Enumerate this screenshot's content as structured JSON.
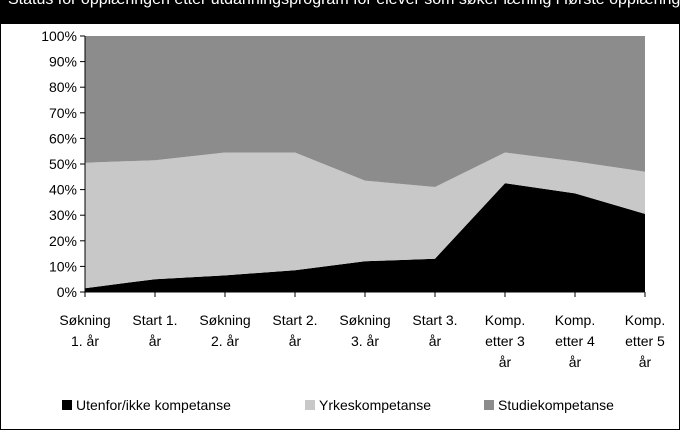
{
  "title": "Status for opplæringen etter utdanningsprogram for elever som søker lærling i første opplæring",
  "chart_data": {
    "type": "area",
    "stacked": "percent",
    "categories": [
      [
        "Søkning",
        "1. år"
      ],
      [
        "Start 1.",
        "år"
      ],
      [
        "Søkning",
        "2. år"
      ],
      [
        "Start 2.",
        "år"
      ],
      [
        "Søkning",
        "3. år"
      ],
      [
        "Start 3.",
        "år"
      ],
      [
        "Komp.",
        "etter 3",
        "år"
      ],
      [
        "Komp.",
        "etter 4",
        "år"
      ],
      [
        "Komp.",
        "etter 5",
        "år"
      ]
    ],
    "series": [
      {
        "name": "Utenfor/ikke kompetanse",
        "color": "#000000",
        "values": [
          1.5,
          5,
          6.5,
          8.5,
          12,
          13,
          42.5,
          38.5,
          30.5
        ]
      },
      {
        "name": "Yrkeskompetanse",
        "color": "#c8c8c8",
        "values": [
          49,
          46.5,
          48,
          46,
          31.5,
          28,
          12,
          12.5,
          16.5
        ]
      },
      {
        "name": "Studiekompetanse",
        "color": "#8c8c8c",
        "values": [
          49.5,
          48.5,
          45.5,
          45.5,
          56.5,
          59,
          45.5,
          49,
          53
        ]
      }
    ],
    "ylim": [
      0,
      100
    ],
    "yticks": [
      "0%",
      "10%",
      "20%",
      "30%",
      "40%",
      "50%",
      "60%",
      "70%",
      "80%",
      "90%",
      "100%"
    ],
    "legend_position": "bottom",
    "grid": false
  }
}
